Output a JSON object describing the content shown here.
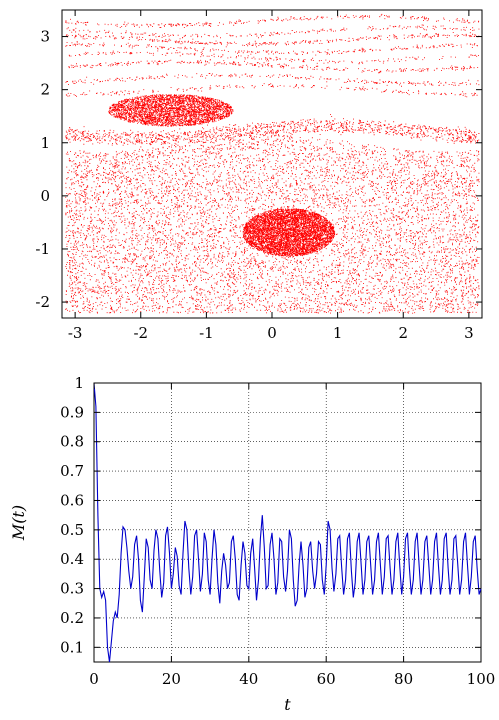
{
  "chart_data": [
    {
      "type": "scatter",
      "title": "",
      "xlabel": "",
      "ylabel": "",
      "xlim": [
        -3.2,
        3.2
      ],
      "ylim": [
        -2.3,
        3.5
      ],
      "xticks": [
        -3,
        -2,
        -1,
        0,
        1,
        2,
        3
      ],
      "yticks": [
        -2,
        -1,
        0,
        1,
        2,
        3
      ],
      "grid": false,
      "point_color": "#ff0000",
      "description_of_structure": {
        "dense_cores": [
          {
            "cx": 0.25,
            "cy": -0.68,
            "rx": 0.7,
            "ry": 0.45
          },
          {
            "cx": -1.55,
            "cy": 1.62,
            "rx": 0.95,
            "ry": 0.3
          }
        ],
        "chaotic_sea_y_range": [
          -2.2,
          1.1
        ],
        "upper_bands_y": [
          2.0,
          2.2,
          2.45,
          2.62,
          2.78,
          2.95,
          3.1,
          3.3
        ]
      }
    },
    {
      "type": "line",
      "title": "",
      "xlabel": "t",
      "ylabel": "M(t)",
      "xlim": [
        0,
        100
      ],
      "ylim": [
        0.05,
        1.0
      ],
      "xticks": [
        0,
        20,
        40,
        60,
        80,
        100
      ],
      "yticks": [
        0.1,
        0.2,
        0.3,
        0.4,
        0.5,
        0.6,
        0.7,
        0.8,
        0.9,
        1
      ],
      "grid": true,
      "line_color": "#0000cc",
      "series": [
        {
          "x": [
            0,
            0.5,
            1,
            1.5,
            2,
            2.5,
            3,
            3.5,
            4,
            4.5,
            5,
            5.5,
            6,
            6.5,
            7,
            7.5,
            8,
            8.5,
            9,
            9.5,
            10,
            10.5,
            11,
            11.5,
            12,
            12.5,
            13,
            13.5,
            14,
            14.5,
            15,
            15.5,
            16,
            16.5,
            17,
            17.5,
            18,
            18.5,
            19,
            19.5,
            20,
            20.5,
            21,
            21.5,
            22,
            22.5,
            23,
            23.5,
            24,
            24.5,
            25,
            25.5,
            26,
            26.5,
            27,
            27.5,
            28,
            28.5,
            29,
            29.5,
            30,
            30.5,
            31,
            31.5,
            32,
            32.5,
            33,
            33.5,
            34,
            34.5,
            35,
            35.5,
            36,
            36.5,
            37,
            37.5,
            38,
            38.5,
            39,
            39.5,
            40,
            40.5,
            41,
            41.5,
            42,
            42.5,
            43,
            43.5,
            44,
            44.5,
            45,
            45.5,
            46,
            46.5,
            47,
            47.5,
            48,
            48.5,
            49,
            49.5,
            50,
            50.5,
            51,
            51.5,
            52,
            52.5,
            53,
            53.5,
            54,
            54.5,
            55,
            55.5,
            56,
            56.5,
            57,
            57.5,
            58,
            58.5,
            59,
            59.5,
            60,
            60.5,
            61,
            61.5,
            62,
            62.5,
            63,
            63.5,
            64,
            64.5,
            65,
            65.5,
            66,
            66.5,
            67,
            67.5,
            68,
            68.5,
            69,
            69.5,
            70,
            70.5,
            71,
            71.5,
            72,
            72.5,
            73,
            73.5,
            74,
            74.5,
            75,
            75.5,
            76,
            76.5,
            77,
            77.5,
            78,
            78.5,
            79,
            79.5,
            80,
            80.5,
            81,
            81.5,
            82,
            82.5,
            83,
            83.5,
            84,
            84.5,
            85,
            85.5,
            86,
            86.5,
            87,
            87.5,
            88,
            88.5,
            89,
            89.5,
            90,
            90.5,
            91,
            91.5,
            92,
            92.5,
            93,
            93.5,
            94,
            94.5,
            95,
            95.5,
            96,
            96.5,
            97,
            97.5,
            98,
            98.5,
            99,
            99.5,
            100
          ],
          "y": [
            1.0,
            0.92,
            0.55,
            0.3,
            0.27,
            0.29,
            0.26,
            0.1,
            0.05,
            0.12,
            0.19,
            0.22,
            0.2,
            0.28,
            0.42,
            0.51,
            0.5,
            0.44,
            0.36,
            0.3,
            0.34,
            0.45,
            0.48,
            0.4,
            0.26,
            0.22,
            0.34,
            0.47,
            0.44,
            0.33,
            0.3,
            0.43,
            0.5,
            0.47,
            0.36,
            0.27,
            0.32,
            0.48,
            0.51,
            0.42,
            0.3,
            0.35,
            0.44,
            0.41,
            0.31,
            0.28,
            0.42,
            0.53,
            0.5,
            0.37,
            0.28,
            0.34,
            0.48,
            0.5,
            0.4,
            0.29,
            0.35,
            0.49,
            0.46,
            0.33,
            0.28,
            0.4,
            0.5,
            0.45,
            0.32,
            0.25,
            0.36,
            0.42,
            0.38,
            0.3,
            0.32,
            0.46,
            0.48,
            0.4,
            0.28,
            0.26,
            0.38,
            0.46,
            0.42,
            0.31,
            0.3,
            0.42,
            0.47,
            0.37,
            0.26,
            0.33,
            0.47,
            0.55,
            0.44,
            0.3,
            0.31,
            0.45,
            0.49,
            0.4,
            0.28,
            0.32,
            0.47,
            0.46,
            0.34,
            0.29,
            0.36,
            0.5,
            0.47,
            0.33,
            0.24,
            0.26,
            0.38,
            0.46,
            0.38,
            0.27,
            0.3,
            0.44,
            0.46,
            0.36,
            0.3,
            0.35,
            0.46,
            0.45,
            0.33,
            0.28,
            0.38,
            0.53,
            0.5,
            0.37,
            0.29,
            0.35,
            0.47,
            0.48,
            0.37,
            0.28,
            0.33,
            0.47,
            0.49,
            0.36,
            0.27,
            0.32,
            0.46,
            0.49,
            0.39,
            0.28,
            0.33,
            0.46,
            0.48,
            0.38,
            0.28,
            0.33,
            0.46,
            0.49,
            0.38,
            0.28,
            0.34,
            0.47,
            0.48,
            0.37,
            0.28,
            0.33,
            0.46,
            0.49,
            0.38,
            0.28,
            0.34,
            0.47,
            0.49,
            0.37,
            0.28,
            0.33,
            0.46,
            0.49,
            0.38,
            0.28,
            0.33,
            0.46,
            0.48,
            0.38,
            0.28,
            0.33,
            0.46,
            0.49,
            0.38,
            0.28,
            0.33,
            0.47,
            0.49,
            0.37,
            0.28,
            0.33,
            0.47,
            0.48,
            0.38,
            0.28,
            0.33,
            0.46,
            0.49,
            0.38,
            0.28,
            0.34,
            0.46,
            0.48,
            0.37,
            0.28,
            0.3
          ]
        }
      ]
    }
  ]
}
